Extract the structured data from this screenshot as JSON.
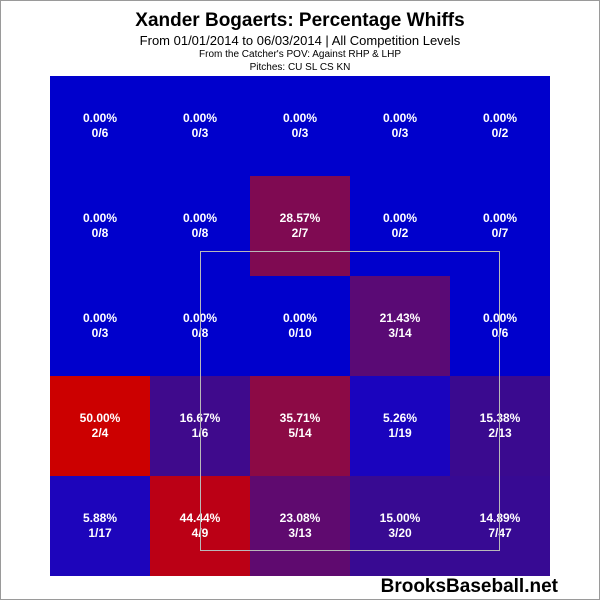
{
  "chart": {
    "title": "Xander Bogaerts: Percentage Whiffs",
    "subtitle": "From 01/01/2014 to 06/03/2014 | All Competition Levels",
    "pov_line": "From the Catcher's POV:   Against RHP & LHP",
    "pitches_line": "Pitches:  CU  SL  CS  KN",
    "watermark": "BrooksBaseball.net"
  },
  "chart_data": {
    "type": "heatmap",
    "title": "Xander Bogaerts: Percentage Whiffs",
    "rows": 5,
    "cols": 5,
    "cells": [
      [
        {
          "pct": "0.00%",
          "ratio": "0/6",
          "value": 0.0,
          "color": "#0000cc"
        },
        {
          "pct": "0.00%",
          "ratio": "0/3",
          "value": 0.0,
          "color": "#0000cc"
        },
        {
          "pct": "0.00%",
          "ratio": "0/3",
          "value": 0.0,
          "color": "#0000cc"
        },
        {
          "pct": "0.00%",
          "ratio": "0/3",
          "value": 0.0,
          "color": "#0000cc"
        },
        {
          "pct": "0.00%",
          "ratio": "0/2",
          "value": 0.0,
          "color": "#0000cc"
        }
      ],
      [
        {
          "pct": "0.00%",
          "ratio": "0/8",
          "value": 0.0,
          "color": "#0000cc"
        },
        {
          "pct": "0.00%",
          "ratio": "0/8",
          "value": 0.0,
          "color": "#0000cc"
        },
        {
          "pct": "28.57%",
          "ratio": "2/7",
          "value": 28.57,
          "color": "#7f0a52"
        },
        {
          "pct": "0.00%",
          "ratio": "0/2",
          "value": 0.0,
          "color": "#0000cc"
        },
        {
          "pct": "0.00%",
          "ratio": "0/7",
          "value": 0.0,
          "color": "#0000cc"
        }
      ],
      [
        {
          "pct": "0.00%",
          "ratio": "0/3",
          "value": 0.0,
          "color": "#0000cc"
        },
        {
          "pct": "0.00%",
          "ratio": "0/8",
          "value": 0.0,
          "color": "#0000cc"
        },
        {
          "pct": "0.00%",
          "ratio": "0/10",
          "value": 0.0,
          "color": "#0000cc"
        },
        {
          "pct": "21.43%",
          "ratio": "3/14",
          "value": 21.43,
          "color": "#5a0a75"
        },
        {
          "pct": "0.00%",
          "ratio": "0/6",
          "value": 0.0,
          "color": "#0000cc"
        }
      ],
      [
        {
          "pct": "50.00%",
          "ratio": "2/4",
          "value": 50.0,
          "color": "#cc0000"
        },
        {
          "pct": "16.67%",
          "ratio": "1/6",
          "value": 16.67,
          "color": "#3f0a8c"
        },
        {
          "pct": "35.71%",
          "ratio": "5/14",
          "value": 35.71,
          "color": "#8c0a45"
        },
        {
          "pct": "5.26%",
          "ratio": "1/19",
          "value": 5.26,
          "color": "#1a04be"
        },
        {
          "pct": "15.38%",
          "ratio": "2/13",
          "value": 15.38,
          "color": "#3a0a8f"
        }
      ],
      [
        {
          "pct": "5.88%",
          "ratio": "1/17",
          "value": 5.88,
          "color": "#1d05bb"
        },
        {
          "pct": "44.44%",
          "ratio": "4/9",
          "value": 44.44,
          "color": "#bb0015"
        },
        {
          "pct": "23.08%",
          "ratio": "3/13",
          "value": 23.08,
          "color": "#5f0a6f"
        },
        {
          "pct": "15.00%",
          "ratio": "3/20",
          "value": 15.0,
          "color": "#380a92"
        },
        {
          "pct": "14.89%",
          "ratio": "7/47",
          "value": 14.89,
          "color": "#370a93"
        }
      ]
    ]
  }
}
